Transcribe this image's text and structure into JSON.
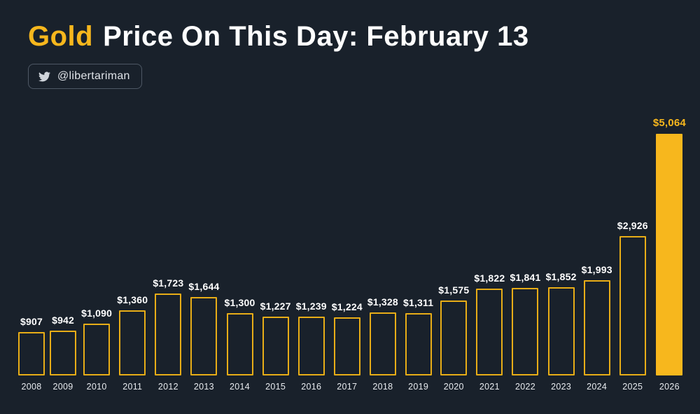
{
  "title": {
    "highlight": "Gold",
    "rest": "Price On This Day: February 13"
  },
  "badge": {
    "handle": "@libertariman",
    "icon": "twitter-icon"
  },
  "colors": {
    "background": "#19212b",
    "gold": "#f7b71d",
    "bar_outline": "#e8ad17",
    "text": "#ffffff",
    "badge_border": "#4e5865"
  },
  "chart_data": {
    "type": "bar",
    "title": "Gold Price On This Day: February 13",
    "xlabel": "",
    "ylabel": "",
    "legend": "none",
    "grid": false,
    "ylim": [
      0,
      5064
    ],
    "categories": [
      "2008",
      "2009",
      "2010",
      "2011",
      "2012",
      "2013",
      "2014",
      "2015",
      "2016",
      "2017",
      "2018",
      "2019",
      "2020",
      "2021",
      "2022",
      "2023",
      "2024",
      "2025",
      "2026"
    ],
    "values": [
      907,
      942,
      1090,
      1360,
      1723,
      1644,
      1300,
      1227,
      1239,
      1224,
      1328,
      1311,
      1575,
      1822,
      1841,
      1852,
      1993,
      2926,
      5064
    ],
    "labels": [
      "$907",
      "$942",
      "$1,090",
      "$1,360",
      "$1,723",
      "$1,644",
      "$1,300",
      "$1,227",
      "$1,239",
      "$1,224",
      "$1,328",
      "$1,311",
      "$1,575",
      "$1,822",
      "$1,841",
      "$1,852",
      "$1,993",
      "$2,926",
      "$5,064"
    ],
    "highlight_index": 18,
    "bar_style": "outlined",
    "highlight_style": "filled"
  }
}
